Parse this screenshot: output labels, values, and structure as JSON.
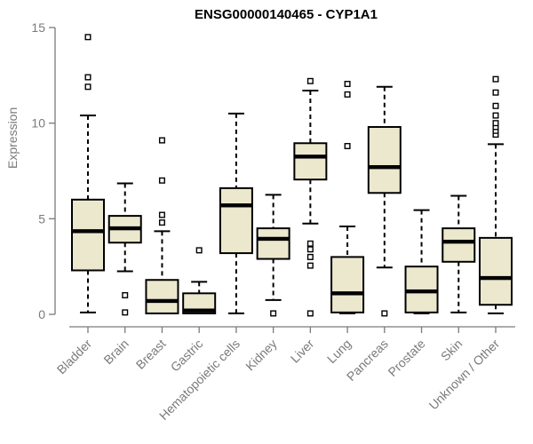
{
  "chart_data": {
    "type": "boxplot",
    "title": "ENSG00000140465 - CYP1A1",
    "ylabel": "Expression",
    "xlabel": "",
    "ylim": [
      0,
      15
    ],
    "yticks": [
      0,
      5,
      10,
      15
    ],
    "grid": false,
    "legend": "none",
    "colors": {
      "box_fill": "#ECE8CE",
      "box_border": "#000000",
      "median": "#000000",
      "whisker": "#000000",
      "axis": "#7a7a7a",
      "tick_label": "#7a7a7a",
      "title": "#000000",
      "background": "#ffffff"
    },
    "categories": [
      "Bladder",
      "Brain",
      "Breast",
      "Gastric",
      "Hematopoietic cells",
      "Kidney",
      "Liver",
      "Lung",
      "Pancreas",
      "Prostate",
      "Skin",
      "Unknown / Other"
    ],
    "series": [
      {
        "category": "Bladder",
        "whisker_low": 0.1,
        "q1": 2.3,
        "median": 4.35,
        "q3": 6.0,
        "whisker_high": 10.4,
        "outliers": [
          11.9,
          12.4,
          14.5
        ]
      },
      {
        "category": "Brain",
        "whisker_low": 2.25,
        "q1": 3.75,
        "median": 4.5,
        "q3": 5.15,
        "whisker_high": 6.85,
        "outliers": [
          1.0,
          0.1
        ]
      },
      {
        "category": "Breast",
        "whisker_low": 0.05,
        "q1": 0.05,
        "median": 0.7,
        "q3": 1.8,
        "whisker_high": 4.35,
        "outliers": [
          4.8,
          5.2,
          7.0,
          9.1
        ]
      },
      {
        "category": "Gastric",
        "whisker_low": 0.05,
        "q1": 0.05,
        "median": 0.2,
        "q3": 1.1,
        "whisker_high": 1.7,
        "outliers": [
          3.35
        ]
      },
      {
        "category": "Hematopoietic cells",
        "whisker_low": 0.05,
        "q1": 3.2,
        "median": 5.7,
        "q3": 6.6,
        "whisker_high": 10.5,
        "outliers": []
      },
      {
        "category": "Kidney",
        "whisker_low": 0.75,
        "q1": 2.9,
        "median": 3.95,
        "q3": 4.5,
        "whisker_high": 6.25,
        "outliers": [
          0.05
        ]
      },
      {
        "category": "Liver",
        "whisker_low": 4.75,
        "q1": 7.05,
        "median": 8.25,
        "q3": 8.95,
        "whisker_high": 11.7,
        "outliers": [
          12.2,
          3.7,
          3.4,
          3.0,
          2.55,
          0.05
        ]
      },
      {
        "category": "Lung",
        "whisker_low": 0.05,
        "q1": 0.1,
        "median": 1.1,
        "q3": 3.0,
        "whisker_high": 4.6,
        "outliers": [
          8.8,
          11.5,
          12.05
        ]
      },
      {
        "category": "Pancreas",
        "whisker_low": 2.45,
        "q1": 6.35,
        "median": 7.7,
        "q3": 9.8,
        "whisker_high": 11.9,
        "outliers": [
          0.05
        ]
      },
      {
        "category": "Prostate",
        "whisker_low": 0.05,
        "q1": 0.1,
        "median": 1.2,
        "q3": 2.5,
        "whisker_high": 5.45,
        "outliers": []
      },
      {
        "category": "Skin",
        "whisker_low": 0.1,
        "q1": 2.75,
        "median": 3.8,
        "q3": 4.5,
        "whisker_high": 6.2,
        "outliers": []
      },
      {
        "category": "Unknown / Other",
        "whisker_low": 0.05,
        "q1": 0.5,
        "median": 1.9,
        "q3": 4.0,
        "whisker_high": 8.9,
        "outliers": [
          9.4,
          9.6,
          9.8,
          10.0,
          10.4,
          10.9,
          11.6,
          12.3
        ]
      }
    ]
  }
}
